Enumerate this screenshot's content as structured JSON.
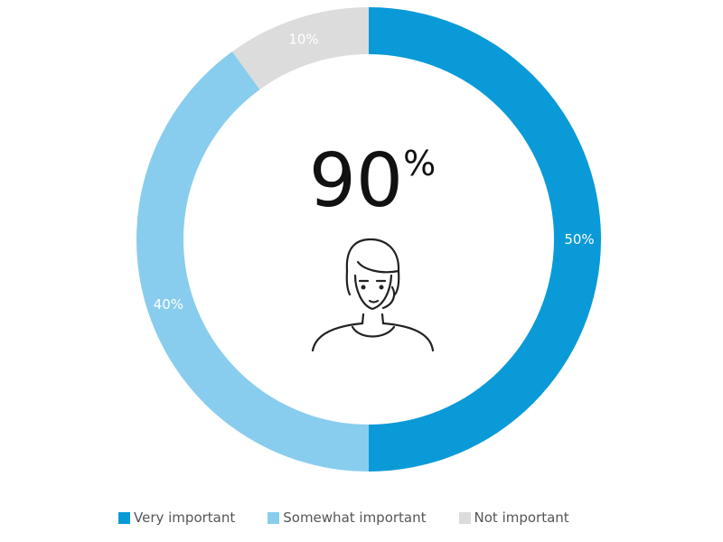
{
  "chart_data": {
    "type": "pie",
    "style": "donut",
    "slices": [
      {
        "label": "Very important",
        "value": 50,
        "value_label": "50%",
        "color": "#0a9ad8"
      },
      {
        "label": "Somewhat important",
        "value": 40,
        "value_label": "40%",
        "color": "#88cdee"
      },
      {
        "label": "Not important",
        "value": 10,
        "value_label": "10%",
        "color": "#dcdcdc"
      }
    ],
    "center": {
      "value": "90",
      "unit": "%",
      "icon": "person-headset-icon"
    },
    "legend_position": "bottom"
  }
}
